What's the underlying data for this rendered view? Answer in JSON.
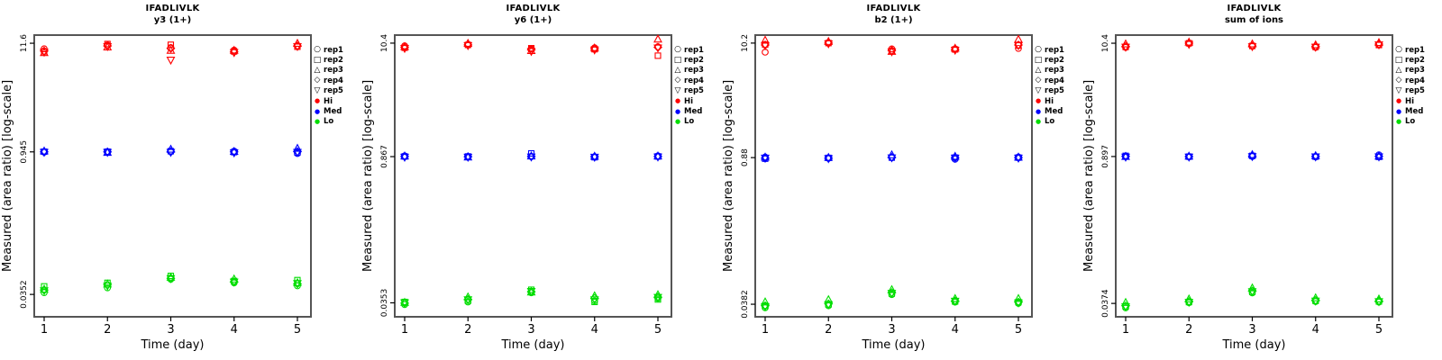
{
  "figure": {
    "peptide": "IFADLIVLK",
    "ylabel": "Measured (area ratio) [log-scale]",
    "xlabel": "Time (day)"
  },
  "colors": {
    "hi": "#FF0000",
    "med": "#0000FF",
    "lo": "#00DD00",
    "frame": "#555555",
    "tick": "#000000",
    "text": "#000000",
    "background": "#FFFFFF"
  },
  "legend": {
    "items": [
      {
        "label": "rep1",
        "symbol": "circle",
        "color": "#000000"
      },
      {
        "label": "rep2",
        "symbol": "square",
        "color": "#000000"
      },
      {
        "label": "rep3",
        "symbol": "triangle-up",
        "color": "#000000"
      },
      {
        "label": "rep4",
        "symbol": "diamond",
        "color": "#000000"
      },
      {
        "label": "rep5",
        "symbol": "triangle-down",
        "color": "#000000"
      },
      {
        "label": "Hi",
        "symbol": "dot",
        "color": "#FF0000"
      },
      {
        "label": "Med",
        "symbol": "dot",
        "color": "#0000FF"
      },
      {
        "label": "Lo",
        "symbol": "dot",
        "color": "#00DD00"
      }
    ]
  },
  "chart_data": [
    {
      "type": "scatter",
      "title": "IFADLIVLK",
      "subtitle": "y3 (1+)",
      "xlabel": "Time (day)",
      "ylabel": "Measured (area ratio) [log-scale]",
      "x": [
        1,
        2,
        3,
        4,
        5
      ],
      "yscale": "log",
      "ylim": [
        0.021,
        14.0
      ],
      "yticks": [
        11.6,
        0.945,
        0.0352
      ],
      "ytick_labels": [
        "11.6",
        "0.945",
        "0.0352"
      ],
      "reps": [
        "rep1",
        "rep2",
        "rep3",
        "rep4",
        "rep5"
      ],
      "series": [
        {
          "name": "Hi",
          "color": "#FF0000",
          "values_by_day": [
            [
              10.2,
              9.6,
              9.3,
              9.7,
              9.5
            ],
            [
              11.1,
              11.4,
              10.6,
              10.9,
              10.8
            ],
            [
              10.5,
              11.2,
              9.8,
              10.3,
              7.9
            ],
            [
              9.9,
              9.6,
              9.8,
              9.5,
              9.4
            ],
            [
              10.9,
              10.7,
              11.5,
              10.9,
              10.8
            ]
          ]
        },
        {
          "name": "Med",
          "color": "#0000FF",
          "values_by_day": [
            [
              0.94,
              0.95,
              0.96,
              0.945,
              0.94
            ],
            [
              0.94,
              0.95,
              0.93,
              0.945,
              0.94
            ],
            [
              0.95,
              0.96,
              1.0,
              0.95,
              0.94
            ],
            [
              0.96,
              0.94,
              0.95,
              0.945,
              0.93
            ],
            [
              0.91,
              0.93,
              1.02,
              0.95,
              0.94
            ]
          ]
        },
        {
          "name": "Lo",
          "color": "#00DD00",
          "values_by_day": [
            [
              0.0367,
              0.0424,
              0.0395,
              0.039,
              0.0385
            ],
            [
              0.041,
              0.046,
              0.0445,
              0.044,
              0.043
            ],
            [
              0.05,
              0.054,
              0.052,
              0.051,
              0.051
            ],
            [
              0.046,
              0.048,
              0.05,
              0.047,
              0.047
            ],
            [
              0.043,
              0.049,
              0.046,
              0.045,
              0.0455
            ]
          ]
        }
      ]
    },
    {
      "type": "scatter",
      "title": "IFADLIVLK",
      "subtitle": "y6 (1+)",
      "xlabel": "Time (day)",
      "ylabel": "Measured (area ratio) [log-scale]",
      "x": [
        1,
        2,
        3,
        4,
        5
      ],
      "yscale": "log",
      "ylim": [
        0.026,
        12.4
      ],
      "yticks": [
        10.4,
        0.867,
        0.0353
      ],
      "ytick_labels": [
        "10.4",
        "0.867",
        "0.0353"
      ],
      "reps": [
        "rep1",
        "rep2",
        "rep3",
        "rep4",
        "rep5"
      ],
      "series": [
        {
          "name": "Hi",
          "color": "#FF0000",
          "values_by_day": [
            [
              9.8,
              9.4,
              9.6,
              9.5,
              9.3
            ],
            [
              10.1,
              10.0,
              10.3,
              10.0,
              9.9
            ],
            [
              9.2,
              9.3,
              8.8,
              9.0,
              8.7
            ],
            [
              9.4,
              9.1,
              9.3,
              9.2,
              9.0
            ],
            [
              9.6,
              7.9,
              11.3,
              9.5,
              9.4
            ]
          ]
        },
        {
          "name": "Med",
          "color": "#0000FF",
          "values_by_day": [
            [
              0.88,
              0.87,
              0.875,
              0.87,
              0.86
            ],
            [
              0.86,
              0.87,
              0.855,
              0.865,
              0.86
            ],
            [
              0.87,
              0.93,
              0.875,
              0.87,
              0.865
            ],
            [
              0.86,
              0.855,
              0.87,
              0.865,
              0.86
            ],
            [
              0.88,
              0.87,
              0.875,
              0.87,
              0.865
            ]
          ]
        },
        {
          "name": "Lo",
          "color": "#00DD00",
          "values_by_day": [
            [
              0.034,
              0.036,
              0.0355,
              0.035,
              0.0355
            ],
            [
              0.036,
              0.037,
              0.04,
              0.038,
              0.038
            ],
            [
              0.044,
              0.047,
              0.0445,
              0.045,
              0.0455
            ],
            [
              0.037,
              0.036,
              0.041,
              0.039,
              0.038
            ],
            [
              0.039,
              0.038,
              0.042,
              0.04,
              0.04
            ]
          ]
        }
      ]
    },
    {
      "type": "scatter",
      "title": "IFADLIVLK",
      "subtitle": "b2 (1+)",
      "xlabel": "Time (day)",
      "ylabel": "Measured (area ratio) [log-scale]",
      "x": [
        1,
        2,
        3,
        4,
        5
      ],
      "yscale": "log",
      "ylim": [
        0.0292,
        12.1
      ],
      "yticks": [
        10.2,
        0.88,
        0.0382
      ],
      "ytick_labels": [
        "10.2",
        "0.88",
        "0.0382"
      ],
      "reps": [
        "rep1",
        "rep2",
        "rep3",
        "rep4",
        "rep5"
      ],
      "series": [
        {
          "name": "Hi",
          "color": "#FF0000",
          "values_by_day": [
            [
              8.4,
              9.9,
              10.8,
              9.8,
              9.7
            ],
            [
              10.3,
              10.2,
              10.5,
              10.2,
              10.1
            ],
            [
              9.0,
              8.6,
              8.5,
              8.7,
              8.5
            ],
            [
              9.0,
              8.9,
              9.1,
              8.9,
              8.8
            ],
            [
              9.1,
              9.7,
              11.0,
              9.8,
              9.7
            ]
          ]
        },
        {
          "name": "Med",
          "color": "#0000FF",
          "values_by_day": [
            [
              0.89,
              0.86,
              0.885,
              0.87,
              0.875
            ],
            [
              0.87,
              0.875,
              0.88,
              0.87,
              0.865
            ],
            [
              0.88,
              0.88,
              0.93,
              0.885,
              0.88
            ],
            [
              0.85,
              0.88,
              0.9,
              0.88,
              0.875
            ],
            [
              0.89,
              0.88,
              0.885,
              0.88,
              0.875
            ]
          ]
        },
        {
          "name": "Lo",
          "color": "#00DD00",
          "values_by_day": [
            [
              0.0355,
              0.037,
              0.04,
              0.037,
              0.0365
            ],
            [
              0.037,
              0.038,
              0.042,
              0.0385,
              0.038
            ],
            [
              0.047,
              0.048,
              0.052,
              0.049,
              0.0485
            ],
            [
              0.04,
              0.0405,
              0.043,
              0.041,
              0.041
            ],
            [
              0.039,
              0.04,
              0.043,
              0.04,
              0.0395
            ]
          ]
        }
      ]
    },
    {
      "type": "scatter",
      "title": "IFADLIVLK",
      "subtitle": "sum of ions",
      "xlabel": "Time (day)",
      "ylabel": "Measured (area ratio) [log-scale]",
      "x": [
        1,
        2,
        3,
        4,
        5
      ],
      "yscale": "log",
      "ylim": [
        0.028,
        12.4
      ],
      "yticks": [
        10.4,
        0.897,
        0.0374
      ],
      "ytick_labels": [
        "10.4",
        "0.897",
        "0.0374"
      ],
      "reps": [
        "rep1",
        "rep2",
        "rep3",
        "rep4",
        "rep5"
      ],
      "series": [
        {
          "name": "Hi",
          "color": "#FF0000",
          "values_by_day": [
            [
              9.5,
              9.6,
              10.2,
              9.7,
              9.6
            ],
            [
              10.3,
              10.4,
              10.6,
              10.4,
              10.2
            ],
            [
              9.9,
              9.8,
              10.2,
              9.8,
              9.7
            ],
            [
              9.5,
              9.6,
              10.0,
              9.7,
              9.6
            ],
            [
              10.1,
              10.0,
              10.5,
              10.2,
              10.1
            ]
          ]
        },
        {
          "name": "Med",
          "color": "#0000FF",
          "values_by_day": [
            [
              0.9,
              0.91,
              0.895,
              0.9,
              0.89
            ],
            [
              0.89,
              0.895,
              0.9,
              0.895,
              0.89
            ],
            [
              0.9,
              0.91,
              0.93,
              0.905,
              0.9
            ],
            [
              0.89,
              0.895,
              0.91,
              0.9,
              0.895
            ],
            [
              0.93,
              0.89,
              0.9,
              0.9,
              0.895
            ]
          ]
        },
        {
          "name": "Lo",
          "color": "#00DD00",
          "values_by_day": [
            [
              0.034,
              0.035,
              0.038,
              0.0355,
              0.035
            ],
            [
              0.038,
              0.0385,
              0.041,
              0.039,
              0.0385
            ],
            [
              0.047,
              0.048,
              0.052,
              0.049,
              0.0485
            ],
            [
              0.039,
              0.0395,
              0.042,
              0.04,
              0.0395
            ],
            [
              0.0385,
              0.039,
              0.041,
              0.0395,
              0.039
            ]
          ]
        }
      ]
    }
  ]
}
